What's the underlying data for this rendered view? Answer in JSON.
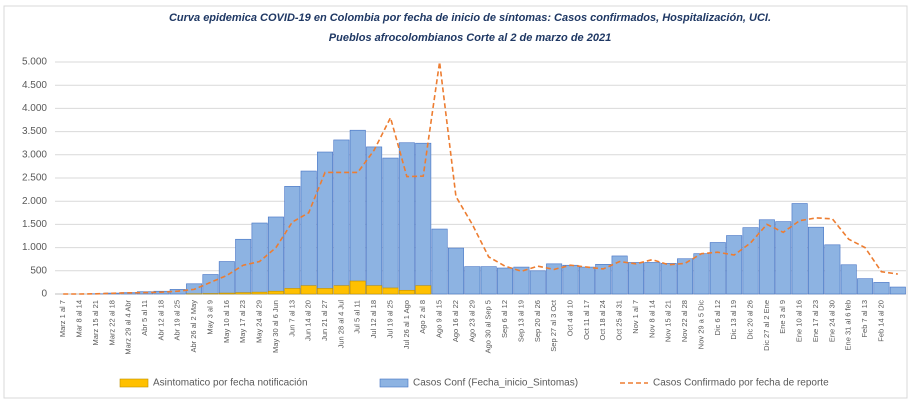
{
  "chart_data": {
    "type": "bar-line",
    "title": "Curva epidemica COVID-19 en Colombia  por fecha de inicio de síntomas: Casos confirmados, Hospitalización, UCI.",
    "subtitle": "Pueblos afrocolombianos  Corte al 2 de marzo de 2021",
    "categories": [
      "Marz 1 al 7",
      "Mar 8 al 14",
      "Marz 15 al 21",
      "Marz 22 al 18",
      "Marz 29 al 4 Abr",
      "Abr 5 al 11",
      "Abr 12 al 18",
      "Abr 19 al 25",
      "Abr 26 al 2 May",
      "May 3 al 9",
      "May 10 al 16",
      "May 17 al 23",
      "May 24 al 29",
      "May 30 al 6 Jun",
      "Jun 7 al 13",
      "Jun 14 al 20",
      "Jun 21 al 27",
      "Jun 28 al 4 Jul",
      "Jul 5 al 11",
      "Jul 12 al 18",
      "Jul 19 al 25",
      "Jul 26 al 1 Ago",
      "Ago 2 al 8",
      "Ago 9 al 15",
      "Ago 16 al 22",
      "Ago 23 al 29",
      "Ago 30 al Sep 5",
      "Sep 6 al 12",
      "Sep 13 al 19",
      "Sep 20 al 26",
      "Sep 27 al 3 Oct",
      "Oct 4 al 10",
      "Oct 11 al 17",
      "Oct 18 al 24",
      "Oct 25 al 31",
      "Nov 1 al 7",
      "Nov 8 al 14",
      "Nov 15 al 21",
      "Nov 22 al 28",
      "Nov 29 a 5 Dic",
      "Dic 6 al 12",
      "Dic 13 al 19",
      "Dic 20 al 26",
      "Dic 27 al 2 Ene",
      "Ene 3 al 9",
      "Ene 10 al 16",
      "Ene 17 al 23",
      "Ene 24 al 30",
      "Ene 31 al 6 feb",
      "Feb 7 al 13",
      "Feb 14 al 20",
      null
    ],
    "series": [
      {
        "name": "Casos Conf (Fecha_inicio_Sintomas)",
        "kind": "bar",
        "color": "#8db3e2",
        "stroke": "#4472c4",
        "values": [
          0,
          0,
          5,
          20,
          30,
          50,
          60,
          100,
          220,
          420,
          700,
          1180,
          1530,
          1660,
          2320,
          2650,
          3060,
          3320,
          3530,
          3170,
          2930,
          3260,
          3250,
          1400,
          990,
          590,
          590,
          560,
          580,
          500,
          650,
          620,
          580,
          640,
          820,
          680,
          680,
          660,
          760,
          870,
          1110,
          1260,
          1430,
          1600,
          1560,
          1950,
          1440,
          1060,
          630,
          330,
          250,
          150
        ]
      },
      {
        "name": "Asintomatico  por fecha notificación",
        "kind": "bar",
        "color": "#ffc000",
        "stroke": "#c09000",
        "values": [
          0,
          0,
          0,
          0,
          0,
          0,
          0,
          0,
          5,
          10,
          20,
          30,
          40,
          60,
          120,
          180,
          120,
          180,
          280,
          180,
          130,
          80,
          180,
          0,
          0,
          0,
          0,
          0,
          0,
          0,
          0,
          0,
          0,
          0,
          0,
          0,
          0,
          0,
          0,
          0,
          0,
          0,
          0,
          0,
          0,
          0,
          0,
          0,
          0,
          0,
          0,
          0
        ]
      },
      {
        "name": "Casos Confirmado por fecha de reporte",
        "kind": "line",
        "color": "#ed7d31",
        "values": [
          0,
          0,
          5,
          15,
          25,
          30,
          40,
          60,
          100,
          250,
          400,
          620,
          700,
          1000,
          1550,
          1750,
          2620,
          2620,
          2620,
          3100,
          3800,
          2530,
          2540,
          5000,
          2100,
          1500,
          800,
          600,
          490,
          600,
          530,
          620,
          580,
          540,
          700,
          650,
          740,
          630,
          660,
          870,
          900,
          840,
          1100,
          1500,
          1330,
          1580,
          1640,
          1620,
          1180,
          1000,
          480,
          430
        ]
      }
    ],
    "ylim": [
      0,
      5000
    ],
    "yticks": [
      0,
      500,
      {
        "value": 1000,
        "label": "1.000"
      },
      {
        "value": 1500,
        "label": "1.500"
      },
      {
        "value": 2000,
        "label": "2.000"
      },
      {
        "value": 2500,
        "label": "2.500"
      },
      {
        "value": 3000,
        "label": "3.000"
      },
      {
        "value": 3500,
        "label": "3.500"
      },
      {
        "value": 4000,
        "label": "4.000"
      },
      {
        "value": 4500,
        "label": "4.500"
      },
      {
        "value": 5000,
        "label": "5.000"
      }
    ],
    "grid": true,
    "legend": "bottom"
  }
}
